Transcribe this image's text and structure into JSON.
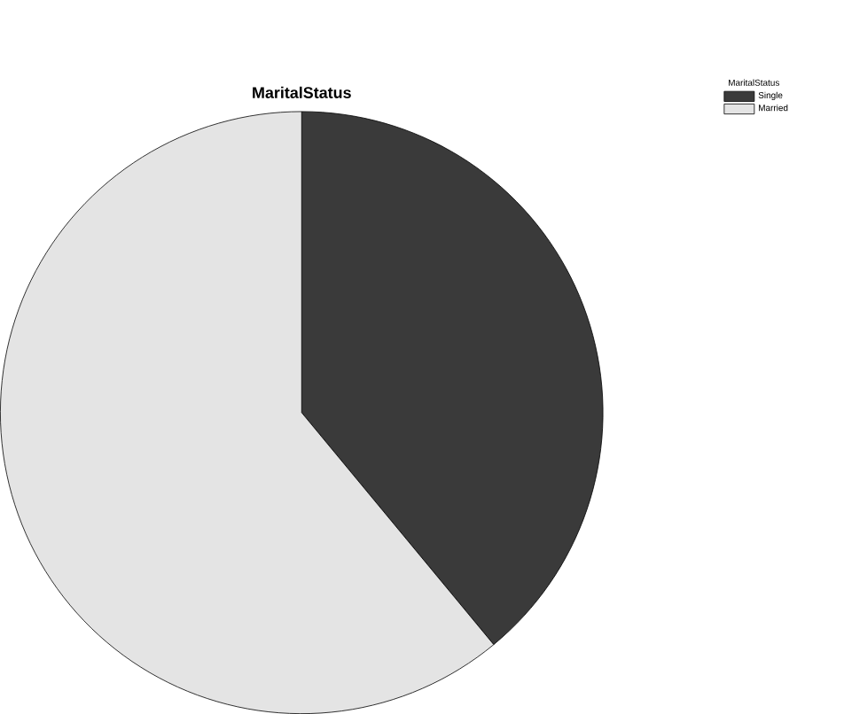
{
  "chart_data": {
    "type": "pie",
    "title": "MaritalStatus",
    "legend_title": "MaritalStatus",
    "categories": [
      "Single",
      "Married"
    ],
    "values": [
      39,
      61
    ],
    "colors": [
      "#3a3a3a",
      "#e4e4e4"
    ],
    "legend": "top right"
  }
}
